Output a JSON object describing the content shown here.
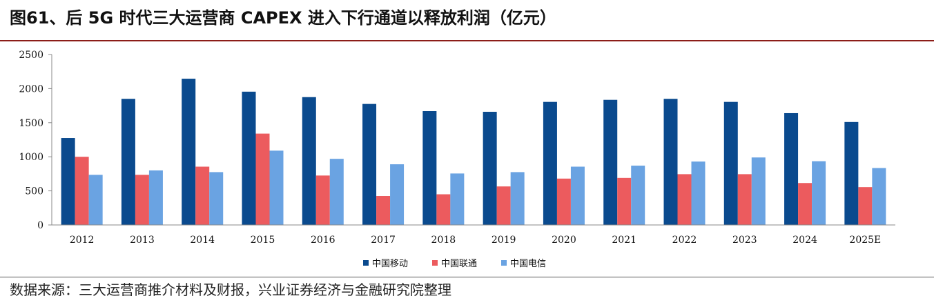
{
  "header": {
    "title": "图61、后 5G 时代三大运营商 CAPEX 进入下行通道以释放利润（亿元）"
  },
  "footer": {
    "source": "数据来源：三大运营商推介材料及财报，兴业证券经济与金融研究院整理"
  },
  "chart_data": {
    "type": "bar",
    "title": "后 5G 时代三大运营商 CAPEX 进入下行通道以释放利润（亿元）",
    "xlabel": "",
    "ylabel": "",
    "ylim": [
      0,
      2500
    ],
    "yticks": [
      0,
      500,
      1000,
      1500,
      2000,
      2500
    ],
    "grid": false,
    "legend_position": "bottom-center",
    "categories": [
      "2012",
      "2013",
      "2014",
      "2015",
      "2016",
      "2017",
      "2018",
      "2019",
      "2020",
      "2021",
      "2022",
      "2023",
      "2024",
      "2025E"
    ],
    "series": [
      {
        "name": "中国移动",
        "color": "#0a4a8e",
        "values": [
          1275,
          1850,
          2145,
          1955,
          1875,
          1775,
          1670,
          1660,
          1805,
          1835,
          1850,
          1805,
          1640,
          1510
        ]
      },
      {
        "name": "中国联通",
        "color": "#ec5b5e",
        "values": [
          1000,
          735,
          855,
          1340,
          725,
          425,
          450,
          565,
          680,
          690,
          745,
          745,
          615,
          555
        ]
      },
      {
        "name": "中国电信",
        "color": "#6aa3e2",
        "values": [
          735,
          800,
          775,
          1090,
          970,
          890,
          755,
          775,
          855,
          870,
          930,
          990,
          935,
          835
        ]
      }
    ]
  }
}
